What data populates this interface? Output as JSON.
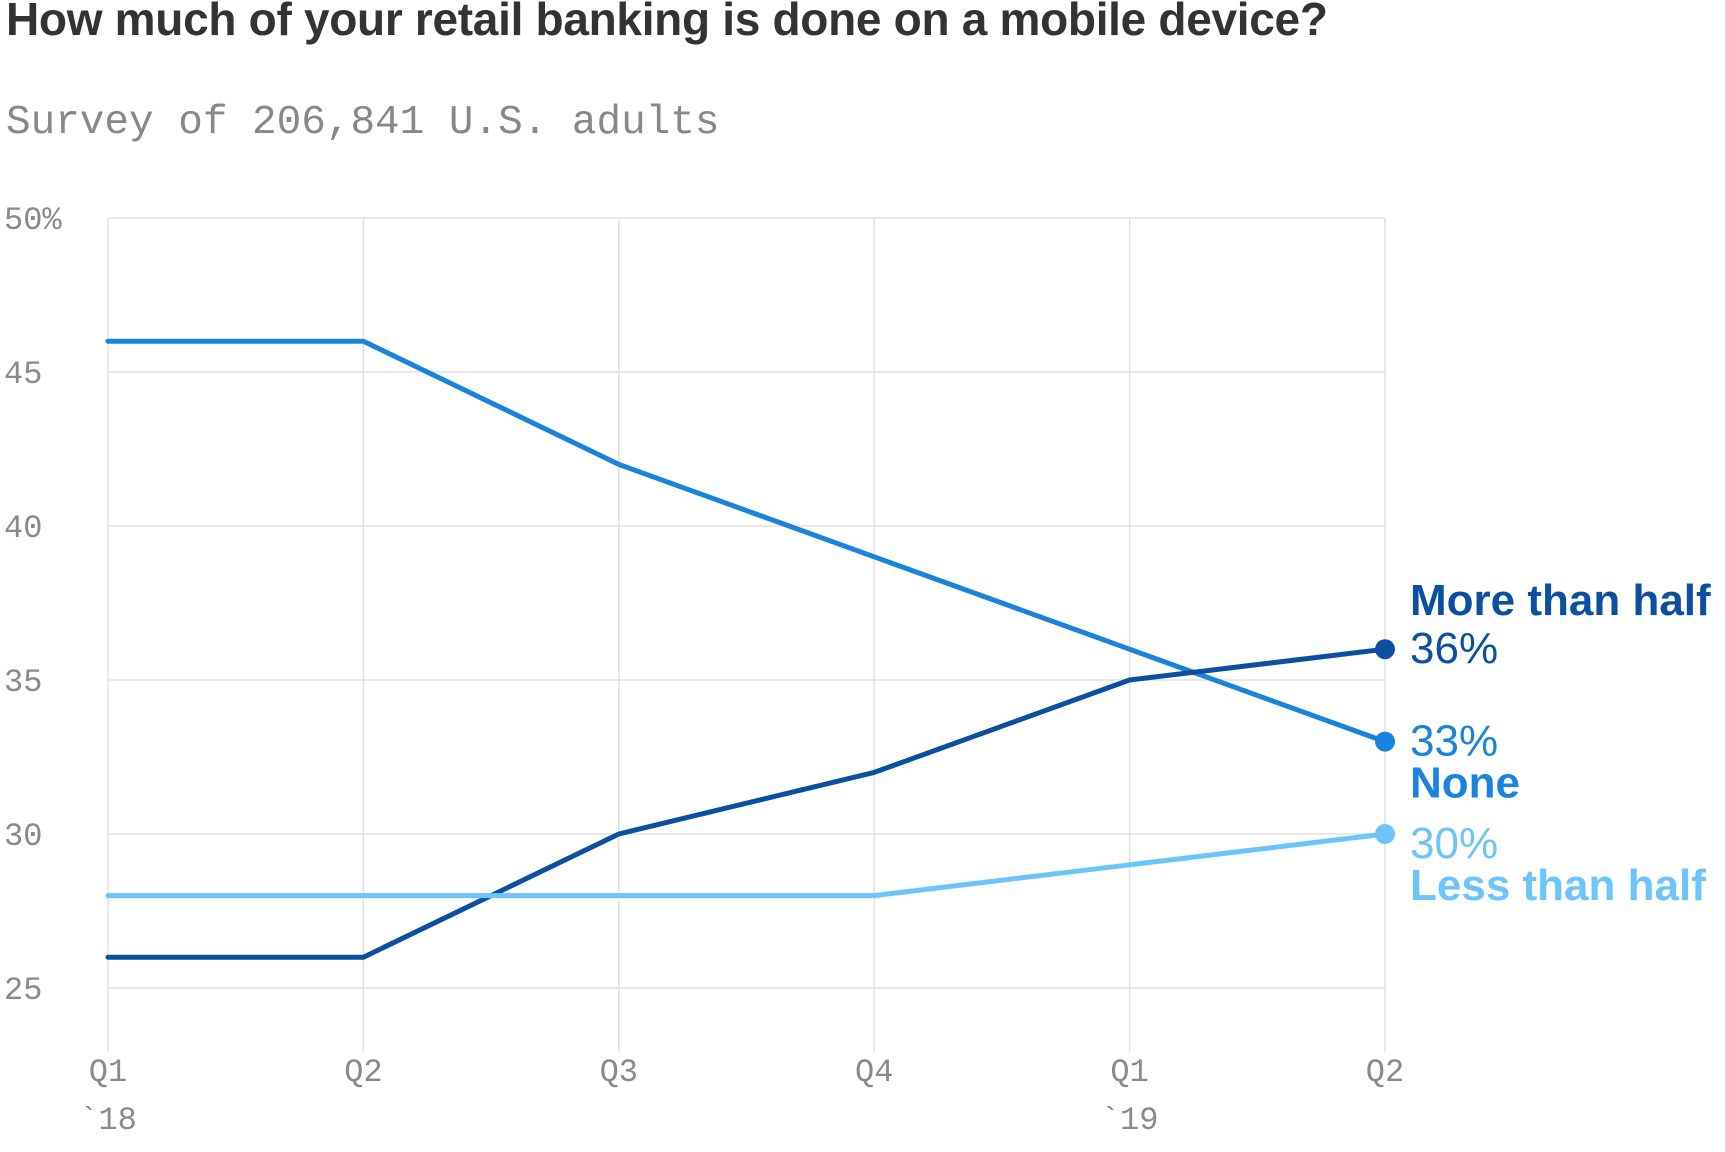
{
  "chart_data": {
    "type": "line",
    "title": "How much of your retail banking is done on a mobile device?",
    "subtitle": "Survey of 206,841 U.S. adults",
    "categories": [
      "Q1",
      "Q2",
      "Q3",
      "Q4",
      "Q1",
      "Q2"
    ],
    "category_years": [
      "`18",
      "",
      "",
      "",
      "`19",
      ""
    ],
    "y_ticks": [
      {
        "value": 50,
        "label": "50%"
      },
      {
        "value": 45,
        "label": "45"
      },
      {
        "value": 40,
        "label": "40"
      },
      {
        "value": 35,
        "label": "35"
      },
      {
        "value": 30,
        "label": "30"
      },
      {
        "value": 25,
        "label": "25"
      }
    ],
    "ylim": [
      25,
      50
    ],
    "grid": true,
    "series": [
      {
        "name": "None",
        "values": [
          46,
          46,
          42,
          39,
          36,
          33
        ],
        "color": "#1a84dc",
        "end_value_label": "33%"
      },
      {
        "name": "More than half",
        "values": [
          26,
          26,
          30,
          32,
          35,
          36
        ],
        "color": "#0b4f9f",
        "end_value_label": "36%"
      },
      {
        "name": "Less than half",
        "values": [
          28,
          28,
          28,
          28,
          29,
          30
        ],
        "color": "#6cc5fa",
        "end_value_label": "30%"
      }
    ]
  }
}
